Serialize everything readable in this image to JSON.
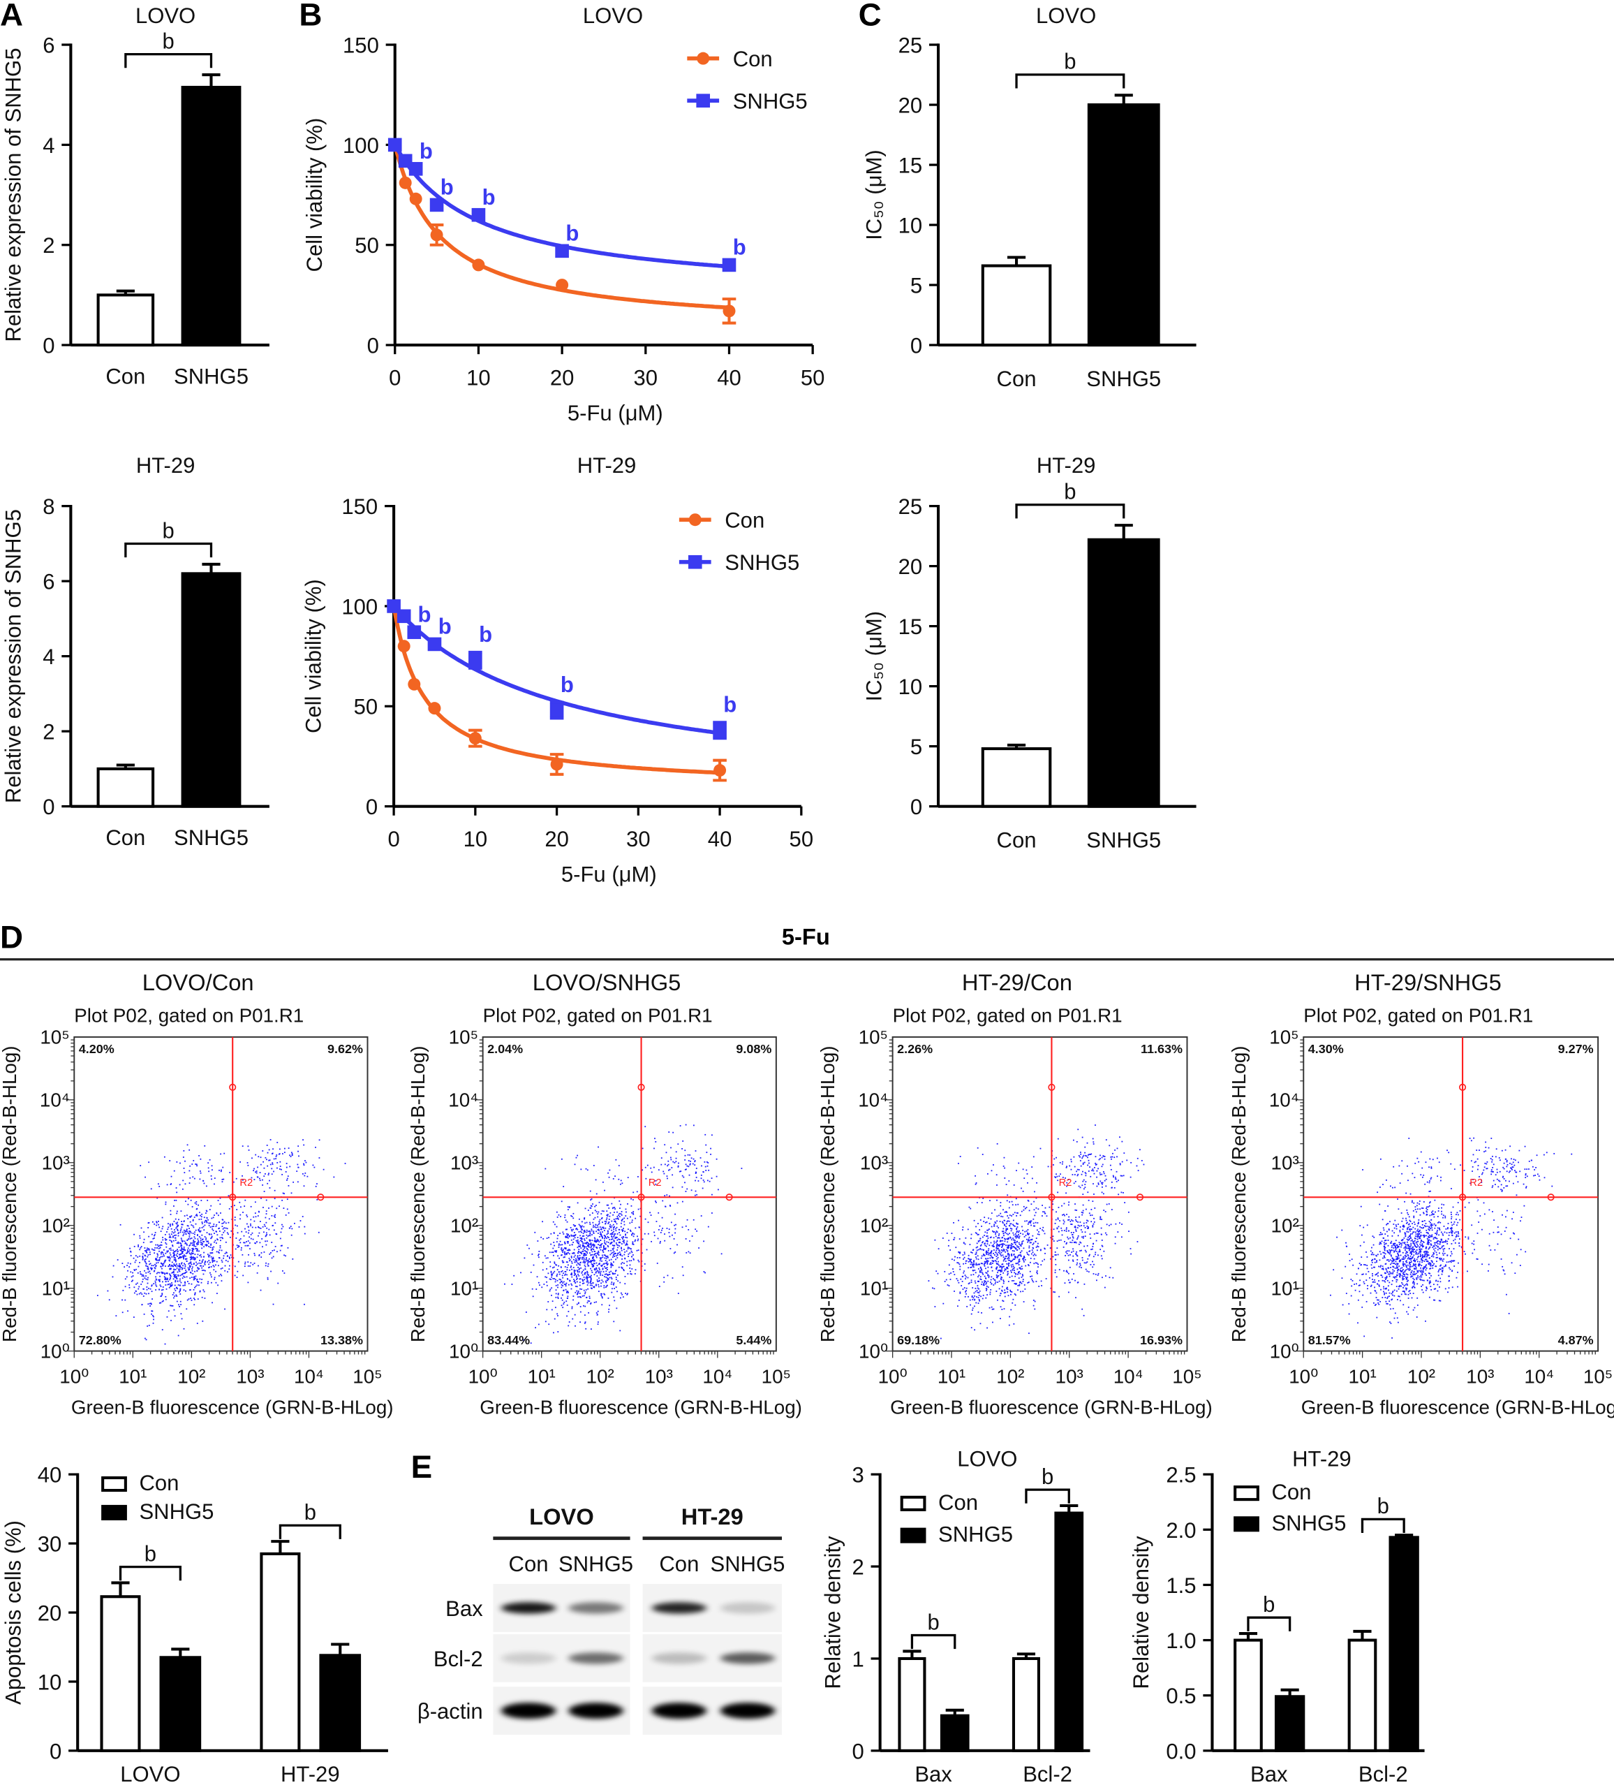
{
  "panel_labels": {
    "A": "A",
    "B": "B",
    "C": "C",
    "D": "D",
    "E": "E"
  },
  "section_d_title": "5-Fu",
  "colors": {
    "con": "#f26522",
    "snhg5": "#3b3bf0",
    "gate": "#ff2020",
    "events": "#1a1aff"
  },
  "chart_data": [
    {
      "id": "A_LOVO",
      "panel": "A",
      "type": "bar",
      "title": "LOVO",
      "ylabel": "Relative expression of SNHG5",
      "categories": [
        "Con",
        "SNHG5"
      ],
      "values": [
        1.0,
        5.15
      ],
      "errors": [
        0.08,
        0.25
      ],
      "ylim": [
        0,
        6
      ],
      "yticks": [
        "0",
        "2",
        "4",
        "6"
      ],
      "significance": [
        {
          "bars": [
            0,
            1
          ],
          "label": "b"
        }
      ]
    },
    {
      "id": "A_HT29",
      "panel": "A",
      "type": "bar",
      "title": "HT-29",
      "ylabel": "Relative expression of SNHG5",
      "categories": [
        "Con",
        "SNHG5"
      ],
      "values": [
        1.0,
        6.2
      ],
      "errors": [
        0.1,
        0.25
      ],
      "ylim": [
        0,
        8
      ],
      "yticks": [
        "0",
        "2",
        "4",
        "6",
        "8"
      ],
      "significance": [
        {
          "bars": [
            0,
            1
          ],
          "label": "b"
        }
      ]
    },
    {
      "id": "B_LOVO",
      "panel": "B",
      "type": "line",
      "title": "LOVO",
      "xlabel": "5-Fu (μM)",
      "ylabel": "Cell viability (%)",
      "x": [
        0,
        1.25,
        2.5,
        5,
        10,
        20,
        40
      ],
      "xlim": [
        0,
        50
      ],
      "xticks": [
        "0",
        "10",
        "20",
        "30",
        "40",
        "50"
      ],
      "ylim": [
        0,
        150
      ],
      "yticks": [
        "0",
        "50",
        "100",
        "150"
      ],
      "legend": "top-right",
      "series": [
        {
          "name": "Con",
          "marker": "circle",
          "values": [
            100,
            81,
            73,
            55,
            40,
            30,
            17
          ],
          "errors": [
            0,
            0,
            0,
            5,
            0,
            0,
            6
          ]
        },
        {
          "name": "SNHG5",
          "marker": "square",
          "values": [
            100,
            92,
            88,
            70,
            65,
            47,
            40
          ],
          "errors": [
            0,
            0,
            0,
            0,
            0,
            0,
            0
          ]
        }
      ],
      "significance": {
        "series": 1,
        "indices": [
          2,
          3,
          4,
          5,
          6
        ],
        "label": "b"
      }
    },
    {
      "id": "B_HT29",
      "panel": "B",
      "type": "line",
      "title": "HT-29",
      "xlabel": "5-Fu (μM)",
      "ylabel": "Cell viability (%)",
      "x": [
        0,
        1.25,
        2.5,
        5,
        10,
        20,
        40
      ],
      "xlim": [
        0,
        50
      ],
      "xticks": [
        "0",
        "10",
        "20",
        "30",
        "40",
        "50"
      ],
      "ylim": [
        0,
        150
      ],
      "yticks": [
        "0",
        "50",
        "100",
        "150"
      ],
      "legend": "top-right",
      "series": [
        {
          "name": "Con",
          "marker": "circle",
          "values": [
            100,
            80,
            61,
            49,
            34,
            21,
            18
          ],
          "errors": [
            0,
            0,
            0,
            0,
            4,
            5,
            5
          ]
        },
        {
          "name": "SNHG5",
          "marker": "square",
          "values": [
            100,
            95,
            87,
            81,
            73,
            48,
            38
          ],
          "errors": [
            0,
            0,
            0,
            0,
            4,
            4,
            4
          ]
        }
      ],
      "significance": {
        "series": 1,
        "indices": [
          2,
          3,
          4,
          5,
          6
        ],
        "label": "b"
      }
    },
    {
      "id": "C_LOVO",
      "panel": "C",
      "type": "bar",
      "title": "LOVO",
      "ylabel": "IC₅₀ (μM)",
      "categories": [
        "Con",
        "SNHG5"
      ],
      "values": [
        6.6,
        20.0
      ],
      "errors": [
        0.7,
        0.8
      ],
      "ylim": [
        0,
        25
      ],
      "yticks": [
        "0",
        "5",
        "10",
        "15",
        "20",
        "25"
      ],
      "significance": [
        {
          "bars": [
            0,
            1
          ],
          "label": "b"
        }
      ]
    },
    {
      "id": "C_HT29",
      "panel": "C",
      "type": "bar",
      "title": "HT-29",
      "ylabel": "IC₅₀ (μM)",
      "categories": [
        "Con",
        "SNHG5"
      ],
      "values": [
        4.8,
        22.2
      ],
      "errors": [
        0.3,
        1.2
      ],
      "ylim": [
        0,
        25
      ],
      "yticks": [
        "0",
        "5",
        "10",
        "15",
        "20",
        "25"
      ],
      "significance": [
        {
          "bars": [
            0,
            1
          ],
          "label": "b"
        }
      ]
    },
    {
      "id": "D_LOVO_Con",
      "panel": "D",
      "type": "scatter",
      "title": "LOVO/Con",
      "subtitle": "Plot P02, gated on P01.R1",
      "xlabel": "Green-B fluorescence (GRN-B-HLog)",
      "ylabel": "Red-B fluorescence (Red-B-HLog)",
      "scale": "log",
      "xticks": [
        "10⁰",
        "10¹",
        "10²",
        "10³",
        "10⁴",
        "10⁵"
      ],
      "yticks": [
        "10⁰",
        "10¹",
        "10²",
        "10³",
        "10⁴",
        "10⁵"
      ],
      "gate_label": "R2",
      "quadrants": {
        "UL": "4.20%",
        "UR": "9.62%",
        "LL": "72.80%",
        "LR": "13.38%"
      }
    },
    {
      "id": "D_LOVO_SNHG5",
      "panel": "D",
      "type": "scatter",
      "title": "LOVO/SNHG5",
      "subtitle": "Plot P02, gated on P01.R1",
      "xlabel": "Green-B fluorescence (GRN-B-HLog)",
      "ylabel": "Red-B fluorescence (Red-B-HLog)",
      "scale": "log",
      "xticks": [
        "10⁰",
        "10¹",
        "10²",
        "10³",
        "10⁴",
        "10⁵"
      ],
      "yticks": [
        "10⁰",
        "10¹",
        "10²",
        "10³",
        "10⁴",
        "10⁵"
      ],
      "gate_label": "R2",
      "quadrants": {
        "UL": "2.04%",
        "UR": "9.08%",
        "LL": "83.44%",
        "LR": "5.44%"
      }
    },
    {
      "id": "D_HT29_Con",
      "panel": "D",
      "type": "scatter",
      "title": "HT-29/Con",
      "subtitle": "Plot P02, gated on P01.R1",
      "xlabel": "Green-B fluorescence (GRN-B-HLog)",
      "ylabel": "Red-B fluorescence (Red-B-HLog)",
      "scale": "log",
      "xticks": [
        "10⁰",
        "10¹",
        "10²",
        "10³",
        "10⁴",
        "10⁵"
      ],
      "yticks": [
        "10⁰",
        "10¹",
        "10²",
        "10³",
        "10⁴",
        "10⁵"
      ],
      "gate_label": "R2",
      "quadrants": {
        "UL": "2.26%",
        "UR": "11.63%",
        "LL": "69.18%",
        "LR": "16.93%"
      }
    },
    {
      "id": "D_HT29_SNHG5",
      "panel": "D",
      "type": "scatter",
      "title": "HT-29/SNHG5",
      "subtitle": "Plot P02, gated on P01.R1",
      "xlabel": "Green-B fluorescence (GRN-B-HLog)",
      "ylabel": "Red-B fluorescence (Red-B-HLog)",
      "scale": "log",
      "xticks": [
        "10⁰",
        "10¹",
        "10²",
        "10³",
        "10⁴",
        "10⁵"
      ],
      "yticks": [
        "10⁰",
        "10¹",
        "10²",
        "10³",
        "10⁴",
        "10⁵"
      ],
      "gate_label": "R2",
      "quadrants": {
        "UL": "4.30%",
        "UR": "9.27%",
        "LL": "81.57%",
        "LR": "4.87%"
      }
    },
    {
      "id": "D_apoptosis",
      "panel": "D",
      "type": "bar",
      "ylabel": "Apoptosis cells (%)",
      "categories": [
        "LOVO",
        "HT-29"
      ],
      "ylim": [
        0,
        40
      ],
      "yticks": [
        "0",
        "10",
        "20",
        "30",
        "40"
      ],
      "legend": "top-left",
      "series": [
        {
          "name": "Con",
          "fill": "#ffffff",
          "values": [
            22.3,
            28.5
          ],
          "errors": [
            2.0,
            1.8
          ]
        },
        {
          "name": "SNHG5",
          "fill": "#000000",
          "values": [
            13.5,
            13.8
          ],
          "errors": [
            1.2,
            1.6
          ]
        }
      ],
      "significance": [
        {
          "bars": [
            0,
            1
          ],
          "label": "b"
        },
        {
          "bars": [
            2,
            3
          ],
          "label": "b"
        }
      ]
    },
    {
      "id": "E_LOVO",
      "panel": "E",
      "type": "bar",
      "title": "LOVO",
      "ylabel": "Relative density",
      "categories": [
        "Bax",
        "Bcl-2"
      ],
      "ylim": [
        0,
        3
      ],
      "yticks": [
        "0",
        "1",
        "2",
        "3"
      ],
      "legend": "top-left",
      "series": [
        {
          "name": "Con",
          "fill": "#ffffff",
          "values": [
            1.0,
            1.0
          ],
          "errors": [
            0.08,
            0.05
          ]
        },
        {
          "name": "SNHG5",
          "fill": "#000000",
          "values": [
            0.38,
            2.58
          ],
          "errors": [
            0.06,
            0.08
          ]
        }
      ],
      "significance": [
        {
          "bars": [
            0,
            1
          ],
          "label": "b"
        },
        {
          "bars": [
            2,
            3
          ],
          "label": "b"
        }
      ]
    },
    {
      "id": "E_HT29",
      "panel": "E",
      "type": "bar",
      "title": "HT-29",
      "ylabel": "Relative density",
      "categories": [
        "Bax",
        "Bcl-2"
      ],
      "ylim": [
        0,
        2.5
      ],
      "yticks": [
        "0.0",
        "0.5",
        "1.0",
        "1.5",
        "2.0",
        "2.5"
      ],
      "legend": "top-left",
      "series": [
        {
          "name": "Con",
          "fill": "#ffffff",
          "values": [
            1.0,
            1.0
          ],
          "errors": [
            0.06,
            0.08
          ]
        },
        {
          "name": "SNHG5",
          "fill": "#000000",
          "values": [
            0.49,
            1.93
          ],
          "errors": [
            0.06,
            0.02
          ]
        }
      ],
      "significance": [
        {
          "bars": [
            0,
            1
          ],
          "label": "b"
        },
        {
          "bars": [
            2,
            3
          ],
          "label": "b"
        }
      ]
    }
  ],
  "western_blot": {
    "groups": [
      "LOVO",
      "HT-29"
    ],
    "lanes": [
      "Con",
      "SNHG5",
      "Con",
      "SNHG5"
    ],
    "rows": [
      {
        "label": "Bax",
        "intensity": [
          0.9,
          0.5,
          0.85,
          0.18
        ]
      },
      {
        "label": "Bcl-2",
        "intensity": [
          0.15,
          0.55,
          0.22,
          0.62
        ]
      },
      {
        "label": "β-actin",
        "intensity": [
          1.0,
          1.0,
          1.0,
          1.0
        ]
      }
    ]
  }
}
